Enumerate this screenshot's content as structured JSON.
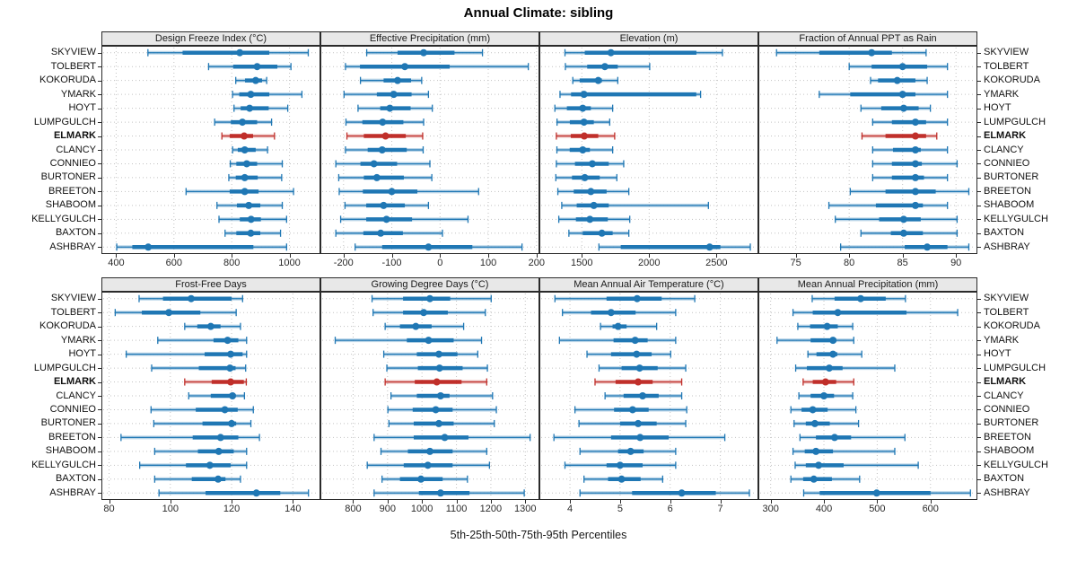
{
  "title": "Annual Climate: sibling",
  "caption": "5th-25th-50th-75th-95th Percentiles",
  "highlight_site": "ELMARK",
  "colors": {
    "series": "#1f77b4",
    "highlight": "#c02f2a",
    "strip_bg": "#e8e8e8",
    "grid": "#c3c3c3",
    "border": "#2a2a2a"
  },
  "chart_data": {
    "type": "dot-whisker percentile trellis",
    "percentiles": [
      5,
      25,
      50,
      75,
      95
    ],
    "rows": [
      "SKYVIEW",
      "TOLBERT",
      "KOKORUDA",
      "YMARK",
      "HOYT",
      "LUMPGULCH",
      "ELMARK",
      "CLANCY",
      "CONNIEO",
      "BURTONER",
      "BREETON",
      "SHABOOM",
      "KELLYGULCH",
      "BAXTON",
      "ASHBRAY"
    ],
    "highlight_row": "ELMARK",
    "grid": "dotted, at major ticks and each site row",
    "legend_position": "none",
    "panels": [
      {
        "title": "Design Freeze Index (°C)",
        "xlim": [
          349,
          1107
        ],
        "ticks": [
          400,
          600,
          800,
          1000
        ],
        "values": [
          [
            510,
            630,
            828,
            930,
            1065
          ],
          [
            720,
            805,
            888,
            958,
            1005
          ],
          [
            814,
            846,
            883,
            905,
            921
          ],
          [
            803,
            826,
            866,
            930,
            1043
          ],
          [
            808,
            831,
            862,
            928,
            994
          ],
          [
            741,
            797,
            837,
            888,
            938
          ],
          [
            766,
            793,
            843,
            874,
            948
          ],
          [
            803,
            821,
            845,
            883,
            924
          ],
          [
            795,
            816,
            852,
            888,
            975
          ],
          [
            790,
            814,
            845,
            890,
            973
          ],
          [
            642,
            793,
            845,
            893,
            1014
          ],
          [
            749,
            818,
            859,
            899,
            975
          ],
          [
            756,
            828,
            867,
            901,
            990
          ],
          [
            777,
            816,
            866,
            899,
            969
          ],
          [
            402,
            456,
            511,
            875,
            990
          ]
        ]
      },
      {
        "title": "Effective Precipitation (mm)",
        "xlim": [
          -248,
          206
        ],
        "ticks": [
          -200,
          -100,
          0,
          100,
          200
        ],
        "values": [
          [
            -152,
            -88,
            -34,
            30,
            88
          ],
          [
            -196,
            -166,
            -73,
            20,
            183
          ],
          [
            -165,
            -117,
            -88,
            -60,
            -38
          ],
          [
            -199,
            -131,
            -96,
            -59,
            -24
          ],
          [
            -170,
            -124,
            -104,
            -61,
            -16
          ],
          [
            -195,
            -161,
            -119,
            -76,
            -34
          ],
          [
            -193,
            -158,
            -113,
            -71,
            -36
          ],
          [
            -196,
            -150,
            -120,
            -69,
            -35
          ],
          [
            -216,
            -165,
            -137,
            -89,
            -21
          ],
          [
            -210,
            -158,
            -131,
            -75,
            -17
          ],
          [
            -209,
            -160,
            -100,
            -47,
            80
          ],
          [
            -197,
            -153,
            -117,
            -73,
            -24
          ],
          [
            -206,
            -153,
            -111,
            -58,
            58
          ],
          [
            -216,
            -159,
            -123,
            -77,
            5
          ],
          [
            -176,
            -120,
            -24,
            67,
            170
          ]
        ]
      },
      {
        "title": "Elevation (m)",
        "xlim": [
          1185,
          2811
        ],
        "ticks": [
          1500,
          2000,
          2500
        ],
        "values": [
          [
            1375,
            1522,
            1716,
            2351,
            2544
          ],
          [
            1378,
            1540,
            1671,
            1767,
            2004
          ],
          [
            1433,
            1484,
            1622,
            1649,
            1767
          ],
          [
            1338,
            1420,
            1516,
            2350,
            2382
          ],
          [
            1300,
            1389,
            1507,
            1567,
            1729
          ],
          [
            1316,
            1411,
            1516,
            1589,
            1707
          ],
          [
            1311,
            1418,
            1518,
            1622,
            1744
          ],
          [
            1315,
            1410,
            1507,
            1560,
            1729
          ],
          [
            1311,
            1449,
            1578,
            1700,
            1811
          ],
          [
            1307,
            1427,
            1522,
            1633,
            1760
          ],
          [
            1322,
            1440,
            1567,
            1684,
            1849
          ],
          [
            1351,
            1462,
            1589,
            1700,
            2440
          ],
          [
            1329,
            1456,
            1560,
            1693,
            1856
          ],
          [
            1404,
            1507,
            1649,
            1729,
            1849
          ],
          [
            1627,
            1789,
            2449,
            2529,
            2751
          ]
        ]
      },
      {
        "title": "Fraction of Annual PPT as Rain",
        "xlim": [
          71.5,
          92
        ],
        "ticks": [
          75,
          80,
          85,
          90
        ],
        "values": [
          [
            73.2,
            77.2,
            82.1,
            84.0,
            87.2
          ],
          [
            80.0,
            82.1,
            85.0,
            87.3,
            89.2
          ],
          [
            82.0,
            82.7,
            84.5,
            86.2,
            87.3
          ],
          [
            77.2,
            80.1,
            85.0,
            86.2,
            89.2
          ],
          [
            81.1,
            83.0,
            85.1,
            86.5,
            87.6
          ],
          [
            82.2,
            84.0,
            86.2,
            87.2,
            89.2
          ],
          [
            81.2,
            83.4,
            86.2,
            87.2,
            88.2
          ],
          [
            82.2,
            84.1,
            86.2,
            86.7,
            89.2
          ],
          [
            82.2,
            84.0,
            86.2,
            86.8,
            90.1
          ],
          [
            82.2,
            84.0,
            86.2,
            87.0,
            89.2
          ],
          [
            80.1,
            83.4,
            86.2,
            88.1,
            91.2
          ],
          [
            78.1,
            82.5,
            86.2,
            86.9,
            89.2
          ],
          [
            78.7,
            82.8,
            85.1,
            86.7,
            90.1
          ],
          [
            81.1,
            83.9,
            85.1,
            86.9,
            90.1
          ],
          [
            79.2,
            85.2,
            87.3,
            89.2,
            91.2
          ]
        ]
      },
      {
        "title": "Frost-Free Days",
        "xlim": [
          77.5,
          149
        ],
        "ticks": [
          80,
          100,
          120,
          140
        ],
        "values": [
          [
            89.8,
            97.6,
            106.8,
            120.0,
            123.6
          ],
          [
            82.0,
            90.7,
            99.5,
            109.8,
            121.5
          ],
          [
            104.7,
            108.8,
            113.2,
            116.4,
            122.9
          ],
          [
            95.9,
            114.1,
            118.7,
            122.2,
            124.9
          ],
          [
            85.6,
            111.2,
            119.7,
            123.6,
            124.9
          ],
          [
            93.9,
            109.3,
            119.5,
            121.3,
            124.6
          ],
          [
            104.7,
            113.5,
            119.7,
            124.0,
            124.8
          ],
          [
            106.0,
            113.2,
            120.3,
            120.7,
            124.2
          ],
          [
            93.7,
            108.3,
            117.8,
            122.0,
            127.1
          ],
          [
            94.6,
            110.5,
            120.0,
            121.5,
            126.3
          ],
          [
            83.9,
            107.3,
            116.4,
            122.2,
            129.1
          ],
          [
            94.9,
            109.0,
            115.8,
            120.7,
            124.9
          ],
          [
            90.0,
            105.1,
            112.9,
            119.7,
            124.9
          ],
          [
            94.9,
            107.0,
            115.6,
            118.0,
            122.9
          ],
          [
            96.3,
            111.5,
            128.1,
            135.9,
            145.1
          ]
        ]
      },
      {
        "title": "Growing Degree Days (°C)",
        "xlim": [
          705,
          1341
        ],
        "ticks": [
          800,
          900,
          1000,
          1100,
          1200,
          1300
        ],
        "values": [
          [
            855,
            945,
            1023,
            1082,
            1201
          ],
          [
            858,
            945,
            1005,
            1075,
            1184
          ],
          [
            893,
            936,
            982,
            1028,
            1121
          ],
          [
            748,
            956,
            1019,
            1092,
            1173
          ],
          [
            889,
            985,
            1049,
            1103,
            1162
          ],
          [
            898,
            988,
            1051,
            1118,
            1190
          ],
          [
            893,
            979,
            1043,
            1115,
            1188
          ],
          [
            910,
            985,
            1054,
            1080,
            1205
          ],
          [
            901,
            973,
            1040,
            1089,
            1216
          ],
          [
            904,
            976,
            1049,
            1092,
            1210
          ],
          [
            861,
            976,
            1066,
            1135,
            1314
          ],
          [
            881,
            959,
            1023,
            1089,
            1188
          ],
          [
            841,
            947,
            1017,
            1089,
            1196
          ],
          [
            884,
            936,
            997,
            1060,
            1132
          ],
          [
            861,
            991,
            1054,
            1138,
            1297
          ]
        ]
      },
      {
        "title": "Mean Annual Air Temperature (°C)",
        "xlim": [
          3.39,
          7.76
        ],
        "ticks": [
          4,
          5,
          6,
          7
        ],
        "values": [
          [
            3.7,
            4.73,
            5.34,
            5.83,
            6.49
          ],
          [
            3.85,
            4.42,
            4.82,
            5.31,
            6.11
          ],
          [
            4.61,
            4.85,
            4.96,
            5.13,
            5.73
          ],
          [
            3.79,
            4.87,
            5.3,
            5.55,
            6.11
          ],
          [
            4.34,
            4.82,
            5.33,
            5.63,
            6.01
          ],
          [
            4.58,
            5.03,
            5.39,
            5.75,
            6.31
          ],
          [
            4.5,
            4.91,
            5.36,
            5.65,
            6.23
          ],
          [
            4.7,
            5.07,
            5.45,
            5.77,
            6.23
          ],
          [
            4.1,
            4.88,
            5.25,
            5.57,
            6.33
          ],
          [
            4.18,
            5.0,
            5.36,
            5.73,
            6.31
          ],
          [
            3.68,
            4.82,
            5.4,
            5.97,
            7.09
          ],
          [
            4.2,
            4.96,
            5.21,
            5.47,
            6.11
          ],
          [
            3.9,
            4.73,
            5.0,
            5.45,
            6.11
          ],
          [
            4.28,
            4.76,
            5.03,
            5.41,
            5.85
          ],
          [
            4.2,
            5.24,
            6.23,
            6.91,
            7.58
          ]
        ]
      },
      {
        "title": "Mean Annual Precipitation (mm)",
        "xlim": [
          277,
          688
        ],
        "ticks": [
          300,
          400,
          500,
          600
        ],
        "values": [
          [
            378,
            420,
            469,
            516,
            553
          ],
          [
            342,
            379,
            426,
            555,
            651
          ],
          [
            351,
            374,
            406,
            426,
            454
          ],
          [
            312,
            375,
            417,
            423,
            456
          ],
          [
            370,
            386,
            417,
            425,
            471
          ],
          [
            347,
            368,
            410,
            435,
            533
          ],
          [
            361,
            379,
            403,
            423,
            456
          ],
          [
            353,
            375,
            400,
            419,
            454
          ],
          [
            338,
            358,
            379,
            407,
            460
          ],
          [
            344,
            366,
            383,
            411,
            465
          ],
          [
            355,
            385,
            420,
            451,
            552
          ],
          [
            342,
            364,
            385,
            417,
            533
          ],
          [
            346,
            366,
            390,
            437,
            577
          ],
          [
            338,
            361,
            381,
            415,
            467
          ],
          [
            362,
            392,
            499,
            600,
            675
          ]
        ]
      }
    ]
  }
}
